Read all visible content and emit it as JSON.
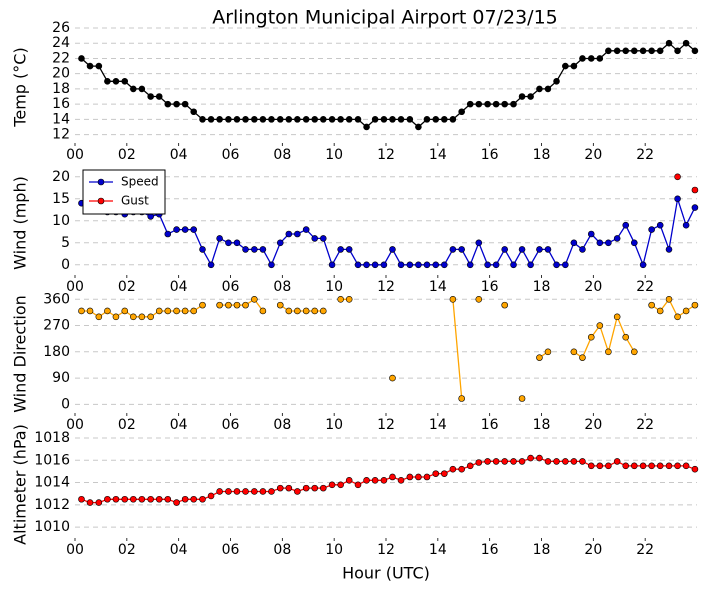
{
  "chart_data": [
    {
      "type": "line",
      "title": "Arlington Municipal Airport 07/23/15",
      "y_label": "Temp (°C)",
      "x": [
        0.25,
        0.58,
        0.92,
        1.25,
        1.58,
        1.92,
        2.25,
        2.58,
        2.92,
        3.25,
        3.58,
        3.92,
        4.25,
        4.58,
        4.92,
        5.25,
        5.58,
        5.92,
        6.25,
        6.58,
        6.92,
        7.25,
        7.58,
        7.92,
        8.25,
        8.58,
        8.92,
        9.25,
        9.58,
        9.92,
        10.25,
        10.58,
        10.92,
        11.25,
        11.58,
        11.92,
        12.25,
        12.58,
        12.92,
        13.25,
        13.58,
        13.92,
        14.25,
        14.58,
        14.92,
        15.25,
        15.58,
        15.92,
        16.25,
        16.58,
        16.92,
        17.25,
        17.58,
        17.92,
        18.25,
        18.58,
        18.92,
        19.25,
        19.58,
        19.92,
        20.25,
        20.58,
        20.92,
        21.25,
        21.58,
        21.92,
        22.25,
        22.58,
        22.92,
        23.25,
        23.58,
        23.92
      ],
      "xlim": [
        0,
        24
      ],
      "xticks": [
        {
          "value": 0,
          "label": "00"
        },
        {
          "value": 2,
          "label": "02"
        },
        {
          "value": 4,
          "label": "04"
        },
        {
          "value": 6,
          "label": "06"
        },
        {
          "value": 8,
          "label": "08"
        },
        {
          "value": 10,
          "label": "10"
        },
        {
          "value": 12,
          "label": "12"
        },
        {
          "value": 14,
          "label": "14"
        },
        {
          "value": 16,
          "label": "16"
        },
        {
          "value": 18,
          "label": "18"
        },
        {
          "value": 20,
          "label": "20"
        },
        {
          "value": 22,
          "label": "22"
        }
      ],
      "ylim": [
        10.5,
        26
      ],
      "yticks": [
        12,
        14,
        16,
        18,
        20,
        22,
        24,
        26
      ],
      "grid": true,
      "series": [
        {
          "color": "#000000",
          "values": [
            22,
            21,
            21,
            19,
            19,
            19,
            18,
            18,
            17,
            17,
            16,
            16,
            16,
            15,
            14,
            14,
            14,
            14,
            14,
            14,
            14,
            14,
            14,
            14,
            14,
            14,
            14,
            14,
            14,
            14,
            14,
            14,
            14,
            13,
            14,
            14,
            14,
            14,
            14,
            13,
            14,
            14,
            14,
            14,
            15,
            16,
            16,
            16,
            16,
            16,
            16,
            17,
            17,
            18,
            18,
            19,
            21,
            21,
            22,
            22,
            22,
            23,
            23,
            23,
            23,
            23,
            23,
            23,
            24,
            23,
            24,
            23
          ]
        }
      ]
    },
    {
      "type": "line",
      "y_label": "Wind (mph)",
      "legend": "upper left",
      "x": [
        0.25,
        0.58,
        0.92,
        1.25,
        1.58,
        1.92,
        2.25,
        2.58,
        2.92,
        3.25,
        3.58,
        3.92,
        4.25,
        4.58,
        4.92,
        5.25,
        5.58,
        5.92,
        6.25,
        6.58,
        6.92,
        7.25,
        7.58,
        7.92,
        8.25,
        8.58,
        8.92,
        9.25,
        9.58,
        9.92,
        10.25,
        10.58,
        10.92,
        11.25,
        11.58,
        11.92,
        12.25,
        12.58,
        12.92,
        13.25,
        13.58,
        13.92,
        14.25,
        14.58,
        14.92,
        15.25,
        15.58,
        15.92,
        16.25,
        16.58,
        16.92,
        17.25,
        17.58,
        17.92,
        18.25,
        18.58,
        18.92,
        19.25,
        19.58,
        19.92,
        20.25,
        20.58,
        20.92,
        21.25,
        21.58,
        21.92,
        22.25,
        22.58,
        22.92,
        23.25,
        23.58,
        23.92
      ],
      "xlim": [
        0,
        24
      ],
      "xticks": [
        {
          "value": 0,
          "label": "00"
        },
        {
          "value": 2,
          "label": "02"
        },
        {
          "value": 4,
          "label": "04"
        },
        {
          "value": 6,
          "label": "06"
        },
        {
          "value": 8,
          "label": "08"
        },
        {
          "value": 10,
          "label": "10"
        },
        {
          "value": 12,
          "label": "12"
        },
        {
          "value": 14,
          "label": "14"
        },
        {
          "value": 16,
          "label": "16"
        },
        {
          "value": 18,
          "label": "18"
        },
        {
          "value": 20,
          "label": "20"
        },
        {
          "value": 22,
          "label": "22"
        }
      ],
      "ylim": [
        -3,
        22
      ],
      "yticks": [
        0,
        5,
        10,
        15,
        20
      ],
      "grid": true,
      "series": [
        {
          "name": "Speed",
          "color": "#0000cc",
          "values": [
            14,
            13,
            13,
            12,
            12,
            11.5,
            12,
            12,
            11,
            11.5,
            7,
            8,
            8,
            8,
            3.5,
            0,
            6,
            5,
            5,
            3.5,
            3.5,
            3.5,
            0,
            5,
            7,
            7,
            8,
            6,
            6,
            0,
            3.5,
            3.5,
            0,
            0,
            0,
            0,
            3.5,
            0,
            0,
            0,
            0,
            0,
            0,
            3.5,
            3.5,
            0,
            5,
            0,
            0,
            3.5,
            0,
            3.5,
            0,
            3.5,
            3.5,
            0,
            0,
            5,
            3.5,
            7,
            5,
            5,
            6,
            9,
            5,
            0,
            8,
            9,
            3.5,
            15,
            9,
            13
          ]
        },
        {
          "name": "Gust",
          "color": "#ff0000",
          "values": [
            null,
            null,
            null,
            null,
            null,
            null,
            null,
            null,
            null,
            null,
            null,
            null,
            null,
            null,
            null,
            null,
            null,
            null,
            null,
            null,
            null,
            null,
            null,
            null,
            null,
            null,
            null,
            null,
            null,
            null,
            null,
            null,
            null,
            null,
            null,
            null,
            null,
            null,
            null,
            null,
            null,
            null,
            null,
            null,
            null,
            null,
            null,
            null,
            null,
            null,
            null,
            null,
            null,
            null,
            null,
            null,
            null,
            null,
            null,
            null,
            null,
            null,
            null,
            null,
            null,
            null,
            null,
            null,
            null,
            20,
            null,
            17
          ]
        }
      ]
    },
    {
      "type": "line",
      "y_label": "Wind Direction",
      "x": [
        0.25,
        0.58,
        0.92,
        1.25,
        1.58,
        1.92,
        2.25,
        2.58,
        2.92,
        3.25,
        3.58,
        3.92,
        4.25,
        4.58,
        4.92,
        5.25,
        5.58,
        5.92,
        6.25,
        6.58,
        6.92,
        7.25,
        7.58,
        7.92,
        8.25,
        8.58,
        8.92,
        9.25,
        9.58,
        9.92,
        10.25,
        10.58,
        10.92,
        11.25,
        11.58,
        11.92,
        12.25,
        12.58,
        12.92,
        13.25,
        13.58,
        13.92,
        14.25,
        14.58,
        14.92,
        15.25,
        15.58,
        15.92,
        16.25,
        16.58,
        16.92,
        17.25,
        17.58,
        17.92,
        18.25,
        18.58,
        18.92,
        19.25,
        19.58,
        19.92,
        20.25,
        20.58,
        20.92,
        21.25,
        21.58,
        21.92,
        22.25,
        22.58,
        22.92,
        23.25,
        23.58,
        23.92
      ],
      "xlim": [
        0,
        24
      ],
      "xticks": [
        {
          "value": 0,
          "label": "00"
        },
        {
          "value": 2,
          "label": "02"
        },
        {
          "value": 4,
          "label": "04"
        },
        {
          "value": 6,
          "label": "06"
        },
        {
          "value": 8,
          "label": "08"
        },
        {
          "value": 10,
          "label": "10"
        },
        {
          "value": 12,
          "label": "12"
        },
        {
          "value": 14,
          "label": "14"
        },
        {
          "value": 16,
          "label": "16"
        },
        {
          "value": 18,
          "label": "18"
        },
        {
          "value": 20,
          "label": "20"
        },
        {
          "value": 22,
          "label": "22"
        }
      ],
      "ylim": [
        -40,
        385
      ],
      "yticks": [
        0,
        90,
        180,
        270,
        360
      ],
      "grid": true,
      "series": [
        {
          "color": "#ffa500",
          "values": [
            320,
            320,
            300,
            320,
            300,
            320,
            300,
            300,
            300,
            320,
            320,
            320,
            320,
            320,
            340,
            null,
            340,
            340,
            340,
            340,
            360,
            320,
            null,
            340,
            320,
            320,
            320,
            320,
            320,
            null,
            360,
            360,
            null,
            null,
            null,
            null,
            90,
            null,
            null,
            null,
            null,
            null,
            null,
            360,
            20,
            null,
            360,
            null,
            null,
            340,
            null,
            20,
            null,
            160,
            180,
            null,
            null,
            180,
            160,
            230,
            270,
            180,
            300,
            230,
            180,
            null,
            340,
            320,
            360,
            300,
            320,
            340
          ]
        }
      ]
    },
    {
      "type": "line",
      "y_label": "Altimeter (hPa)",
      "x_label": "Hour (UTC)",
      "x": [
        0.25,
        0.58,
        0.92,
        1.25,
        1.58,
        1.92,
        2.25,
        2.58,
        2.92,
        3.25,
        3.58,
        3.92,
        4.25,
        4.58,
        4.92,
        5.25,
        5.58,
        5.92,
        6.25,
        6.58,
        6.92,
        7.25,
        7.58,
        7.92,
        8.25,
        8.58,
        8.92,
        9.25,
        9.58,
        9.92,
        10.25,
        10.58,
        10.92,
        11.25,
        11.58,
        11.92,
        12.25,
        12.58,
        12.92,
        13.25,
        13.58,
        13.92,
        14.25,
        14.58,
        14.92,
        15.25,
        15.58,
        15.92,
        16.25,
        16.58,
        16.92,
        17.25,
        17.58,
        17.92,
        18.25,
        18.58,
        18.92,
        19.25,
        19.58,
        19.92,
        20.25,
        20.58,
        20.92,
        21.25,
        21.58,
        21.92,
        22.25,
        22.58,
        22.92,
        23.25,
        23.58,
        23.92
      ],
      "xlim": [
        0,
        24
      ],
      "xticks": [
        {
          "value": 0,
          "label": "00"
        },
        {
          "value": 2,
          "label": "02"
        },
        {
          "value": 4,
          "label": "04"
        },
        {
          "value": 6,
          "label": "06"
        },
        {
          "value": 8,
          "label": "08"
        },
        {
          "value": 10,
          "label": "10"
        },
        {
          "value": 12,
          "label": "12"
        },
        {
          "value": 14,
          "label": "14"
        },
        {
          "value": 16,
          "label": "16"
        },
        {
          "value": 18,
          "label": "18"
        },
        {
          "value": 20,
          "label": "20"
        },
        {
          "value": 22,
          "label": "22"
        }
      ],
      "ylim": [
        1008.75,
        1018.9
      ],
      "yticks": [
        1010,
        1012,
        1014,
        1016,
        1018
      ],
      "grid": true,
      "series": [
        {
          "color": "#ff0000",
          "values": [
            1012.5,
            1012.2,
            1012.2,
            1012.5,
            1012.5,
            1012.5,
            1012.5,
            1012.5,
            1012.5,
            1012.5,
            1012.5,
            1012.2,
            1012.5,
            1012.5,
            1012.5,
            1012.8,
            1013.2,
            1013.2,
            1013.2,
            1013.2,
            1013.2,
            1013.2,
            1013.2,
            1013.5,
            1013.5,
            1013.2,
            1013.5,
            1013.5,
            1013.5,
            1013.8,
            1013.8,
            1014.2,
            1013.8,
            1014.2,
            1014.2,
            1014.2,
            1014.5,
            1014.2,
            1014.5,
            1014.5,
            1014.5,
            1014.8,
            1014.8,
            1015.2,
            1015.2,
            1015.5,
            1015.8,
            1015.9,
            1015.9,
            1015.9,
            1015.9,
            1015.9,
            1016.2,
            1016.2,
            1015.9,
            1015.9,
            1015.9,
            1015.9,
            1015.9,
            1015.5,
            1015.5,
            1015.5,
            1015.9,
            1015.5,
            1015.5,
            1015.5,
            1015.5,
            1015.5,
            1015.5,
            1015.5,
            1015.5,
            1015.2
          ]
        }
      ]
    }
  ]
}
